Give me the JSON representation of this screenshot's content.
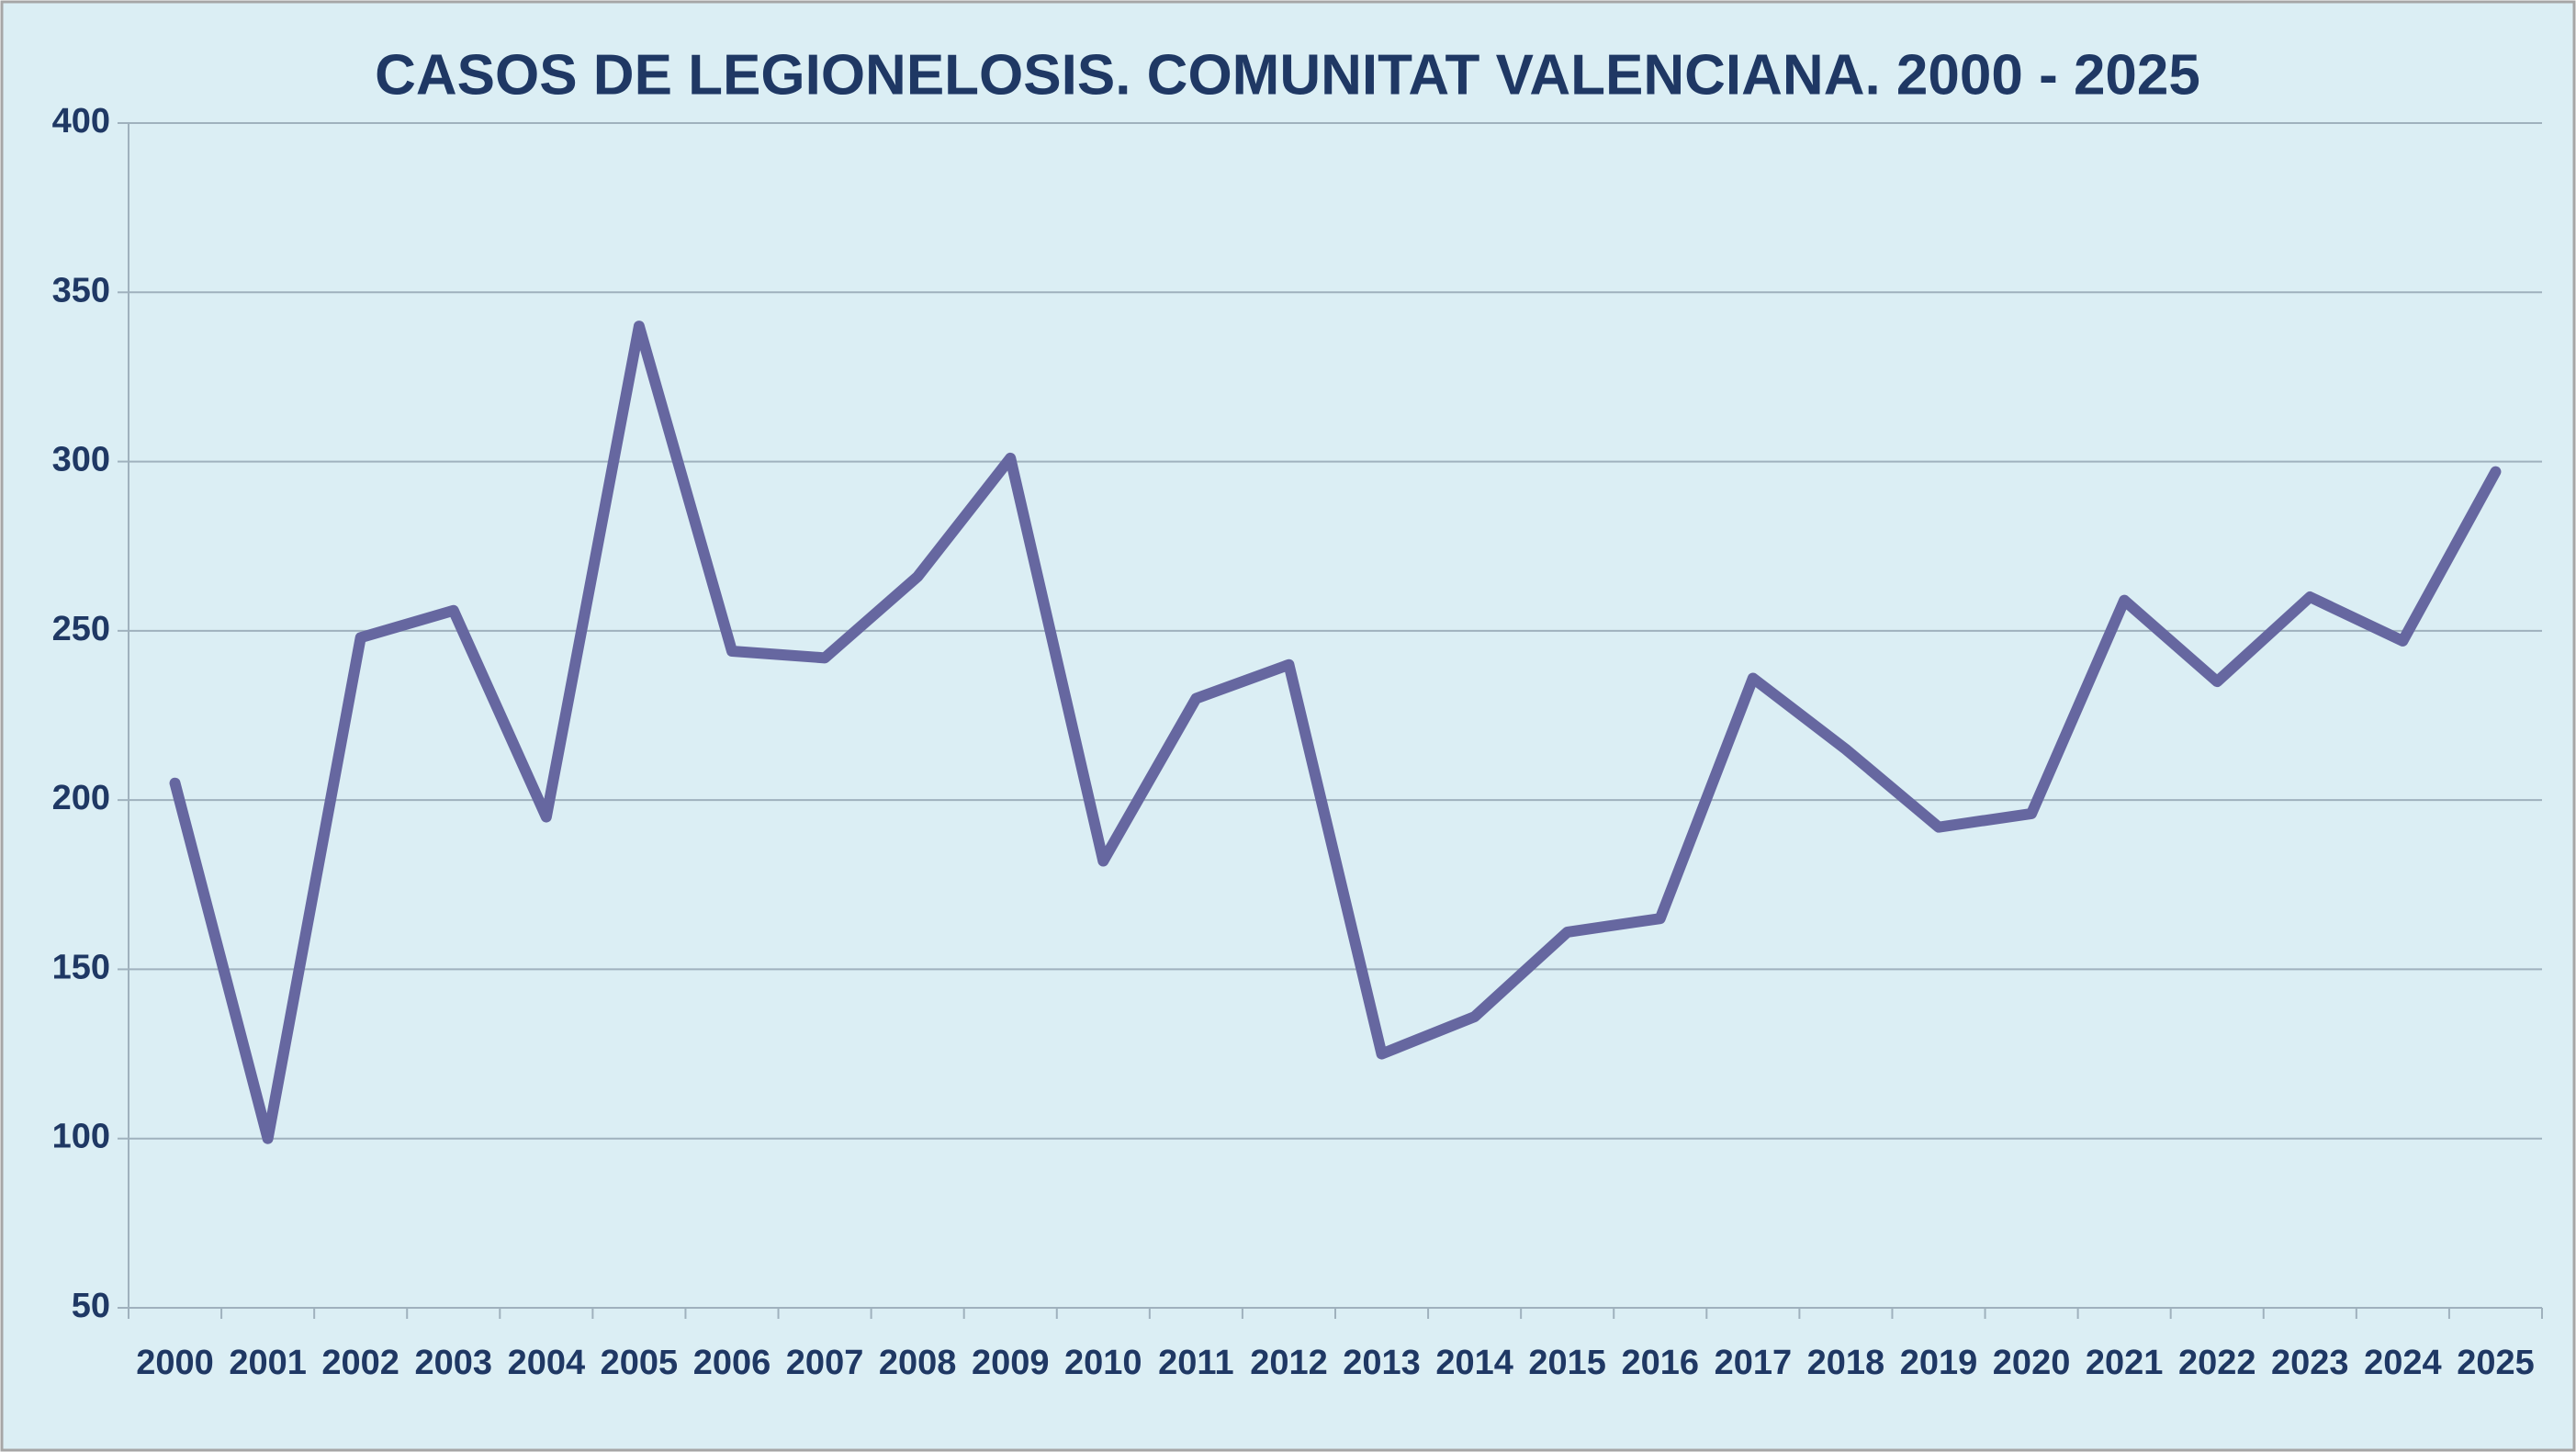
{
  "chart_data": {
    "type": "line",
    "title": "CASOS DE LEGIONELOSIS. COMUNITAT VALENCIANA. 2000 - 2025",
    "categories": [
      "2000",
      "2001",
      "2002",
      "2003",
      "2004",
      "2005",
      "2006",
      "2007",
      "2008",
      "2009",
      "2010",
      "2011",
      "2012",
      "2013",
      "2014",
      "2015",
      "2016",
      "2017",
      "2018",
      "2019",
      "2020",
      "2021",
      "2022",
      "2023",
      "2024",
      "2025"
    ],
    "series": [
      {
        "name": "Casos",
        "color": "#6667a0",
        "values": [
          205,
          100,
          248,
          256,
          195,
          340,
          244,
          242,
          266,
          301,
          182,
          230,
          240,
          125,
          136,
          161,
          165,
          236,
          215,
          192,
          196,
          259,
          235,
          260,
          247,
          297
        ]
      }
    ],
    "ylim": [
      50,
      400
    ],
    "yticks": [
      50,
      100,
      150,
      200,
      250,
      300,
      350,
      400
    ],
    "grid": true
  }
}
